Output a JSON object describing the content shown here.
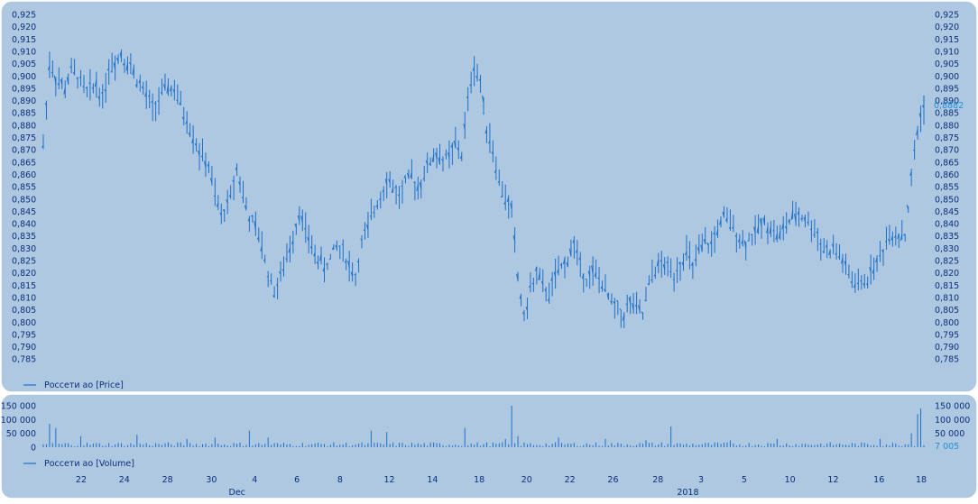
{
  "chart_data": [
    {
      "type": "ohlc",
      "series": [
        {
          "name": "Россети ао [Price]"
        }
      ],
      "y_ticks": [
        "0,925",
        "0,920",
        "0,915",
        "0,910",
        "0,905",
        "0,900",
        "0,895",
        "0,890",
        "0,885",
        "0,880",
        "0,875",
        "0,870",
        "0,865",
        "0,860",
        "0,855",
        "0,850",
        "0,845",
        "0,840",
        "0,835",
        "0,830",
        "0,825",
        "0,820",
        "0,815",
        "0,810",
        "0,805",
        "0,800",
        "0,795",
        "0,790",
        "0,785"
      ],
      "ylim": [
        0.785,
        0.925
      ],
      "last_value_label": "0,8882",
      "last_value": 0.8882,
      "path": [
        [
          0,
          0.872
        ],
        [
          2,
          0.905
        ],
        [
          5,
          0.897
        ],
        [
          7,
          0.895
        ],
        [
          9,
          0.902
        ],
        [
          11,
          0.9
        ],
        [
          14,
          0.893
        ],
        [
          17,
          0.897
        ],
        [
          19,
          0.891
        ],
        [
          21,
          0.903
        ],
        [
          23,
          0.906
        ],
        [
          25,
          0.909
        ],
        [
          28,
          0.904
        ],
        [
          30,
          0.899
        ],
        [
          32,
          0.894
        ],
        [
          35,
          0.887
        ],
        [
          38,
          0.892
        ],
        [
          40,
          0.896
        ],
        [
          42,
          0.894
        ],
        [
          44,
          0.888
        ],
        [
          46,
          0.882
        ],
        [
          48,
          0.876
        ],
        [
          50,
          0.869
        ],
        [
          53,
          0.863
        ],
        [
          55,
          0.851
        ],
        [
          57,
          0.843
        ],
        [
          60,
          0.851
        ],
        [
          62,
          0.863
        ],
        [
          64,
          0.852
        ],
        [
          66,
          0.842
        ],
        [
          68,
          0.838
        ],
        [
          70,
          0.831
        ],
        [
          72,
          0.82
        ],
        [
          74,
          0.813
        ],
        [
          76,
          0.818
        ],
        [
          78,
          0.826
        ],
        [
          80,
          0.835
        ],
        [
          82,
          0.845
        ],
        [
          84,
          0.837
        ],
        [
          86,
          0.83
        ],
        [
          88,
          0.826
        ],
        [
          90,
          0.822
        ],
        [
          92,
          0.826
        ],
        [
          94,
          0.831
        ],
        [
          96,
          0.829
        ],
        [
          98,
          0.823
        ],
        [
          100,
          0.818
        ],
        [
          102,
          0.832
        ],
        [
          104,
          0.838
        ],
        [
          106,
          0.846
        ],
        [
          108,
          0.852
        ],
        [
          110,
          0.858
        ],
        [
          112,
          0.855
        ],
        [
          114,
          0.851
        ],
        [
          116,
          0.856
        ],
        [
          118,
          0.859
        ],
        [
          120,
          0.855
        ],
        [
          122,
          0.86
        ],
        [
          124,
          0.866
        ],
        [
          126,
          0.868
        ],
        [
          128,
          0.866
        ],
        [
          130,
          0.867
        ],
        [
          132,
          0.872
        ],
        [
          134,
          0.868
        ],
        [
          136,
          0.89
        ],
        [
          138,
          0.904
        ],
        [
          140,
          0.897
        ],
        [
          142,
          0.88
        ],
        [
          144,
          0.87
        ],
        [
          146,
          0.857
        ],
        [
          148,
          0.85
        ],
        [
          150,
          0.846
        ],
        [
          152,
          0.818
        ],
        [
          154,
          0.802
        ],
        [
          156,
          0.813
        ],
        [
          158,
          0.82
        ],
        [
          160,
          0.814
        ],
        [
          162,
          0.812
        ],
        [
          164,
          0.818
        ],
        [
          166,
          0.822
        ],
        [
          168,
          0.826
        ],
        [
          170,
          0.832
        ],
        [
          172,
          0.823
        ],
        [
          174,
          0.818
        ],
        [
          176,
          0.82
        ],
        [
          178,
          0.818
        ],
        [
          180,
          0.812
        ],
        [
          182,
          0.808
        ],
        [
          184,
          0.805
        ],
        [
          186,
          0.803
        ],
        [
          188,
          0.808
        ],
        [
          190,
          0.805
        ],
        [
          192,
          0.803
        ],
        [
          194,
          0.815
        ],
        [
          196,
          0.822
        ],
        [
          198,
          0.823
        ],
        [
          200,
          0.822
        ],
        [
          202,
          0.82
        ],
        [
          204,
          0.824
        ],
        [
          206,
          0.828
        ],
        [
          208,
          0.822
        ],
        [
          210,
          0.828
        ],
        [
          212,
          0.832
        ],
        [
          214,
          0.831
        ],
        [
          216,
          0.838
        ],
        [
          218,
          0.842
        ],
        [
          220,
          0.84
        ],
        [
          222,
          0.837
        ],
        [
          224,
          0.832
        ],
        [
          226,
          0.834
        ],
        [
          228,
          0.836
        ],
        [
          230,
          0.84
        ],
        [
          232,
          0.84
        ],
        [
          234,
          0.837
        ],
        [
          236,
          0.835
        ],
        [
          238,
          0.84
        ],
        [
          240,
          0.842
        ],
        [
          242,
          0.844
        ],
        [
          244,
          0.842
        ],
        [
          246,
          0.839
        ],
        [
          248,
          0.835
        ],
        [
          250,
          0.83
        ],
        [
          252,
          0.829
        ],
        [
          254,
          0.829
        ],
        [
          256,
          0.825
        ],
        [
          258,
          0.819
        ],
        [
          260,
          0.815
        ],
        [
          262,
          0.815
        ],
        [
          264,
          0.818
        ],
        [
          266,
          0.823
        ],
        [
          268,
          0.826
        ],
        [
          270,
          0.833
        ],
        [
          272,
          0.836
        ],
        [
          274,
          0.836
        ],
        [
          276,
          0.835
        ],
        [
          278,
          0.858
        ],
        [
          280,
          0.878
        ],
        [
          282,
          0.8882
        ]
      ],
      "sessions": 283
    },
    {
      "type": "bar",
      "series": [
        {
          "name": "Россети ао [Volume]"
        }
      ],
      "y_ticks": [
        "150 000",
        "100 000",
        "50 000",
        "0"
      ],
      "right_y_ticks": [
        "150 000",
        "100 000",
        "50 000"
      ],
      "ylim": [
        0,
        150000
      ],
      "last_value_label": "7 005",
      "last_value": 7005,
      "spikes": [
        [
          2,
          85000
        ],
        [
          4,
          70000
        ],
        [
          12,
          40000
        ],
        [
          30,
          45000
        ],
        [
          46,
          30000
        ],
        [
          55,
          35000
        ],
        [
          66,
          60000
        ],
        [
          72,
          35000
        ],
        [
          105,
          60000
        ],
        [
          110,
          55000
        ],
        [
          135,
          70000
        ],
        [
          148,
          30000
        ],
        [
          150,
          150000
        ],
        [
          152,
          40000
        ],
        [
          165,
          35000
        ],
        [
          180,
          30000
        ],
        [
          193,
          25000
        ],
        [
          201,
          75000
        ],
        [
          220,
          25000
        ],
        [
          235,
          30000
        ],
        [
          268,
          30000
        ],
        [
          278,
          50000
        ],
        [
          280,
          120000
        ],
        [
          281,
          140000
        ],
        [
          282,
          7005
        ]
      ],
      "x_labels": [
        {
          "label": "22",
          "pos": 0.043
        },
        {
          "label": "24",
          "pos": 0.092
        },
        {
          "label": "28",
          "pos": 0.141
        },
        {
          "label": "30",
          "pos": 0.191
        },
        {
          "label": "4",
          "pos": 0.24
        },
        {
          "label": "6",
          "pos": 0.288
        },
        {
          "label": "8",
          "pos": 0.337
        },
        {
          "label": "12",
          "pos": 0.393
        },
        {
          "label": "14",
          "pos": 0.442
        },
        {
          "label": "18",
          "pos": 0.495
        },
        {
          "label": "20",
          "pos": 0.549
        },
        {
          "label": "22",
          "pos": 0.598
        },
        {
          "label": "26",
          "pos": 0.647
        },
        {
          "label": "28",
          "pos": 0.698
        },
        {
          "label": "3",
          "pos": 0.747
        },
        {
          "label": "5",
          "pos": 0.796
        },
        {
          "label": "10",
          "pos": 0.848
        },
        {
          "label": "12",
          "pos": 0.897
        },
        {
          "label": "16",
          "pos": 0.949
        },
        {
          "label": "18",
          "pos": 0.997
        }
      ],
      "month_labels": [
        {
          "label": "Dec",
          "pos": 0.22
        },
        {
          "label": "2018",
          "pos": 0.732
        }
      ]
    }
  ]
}
